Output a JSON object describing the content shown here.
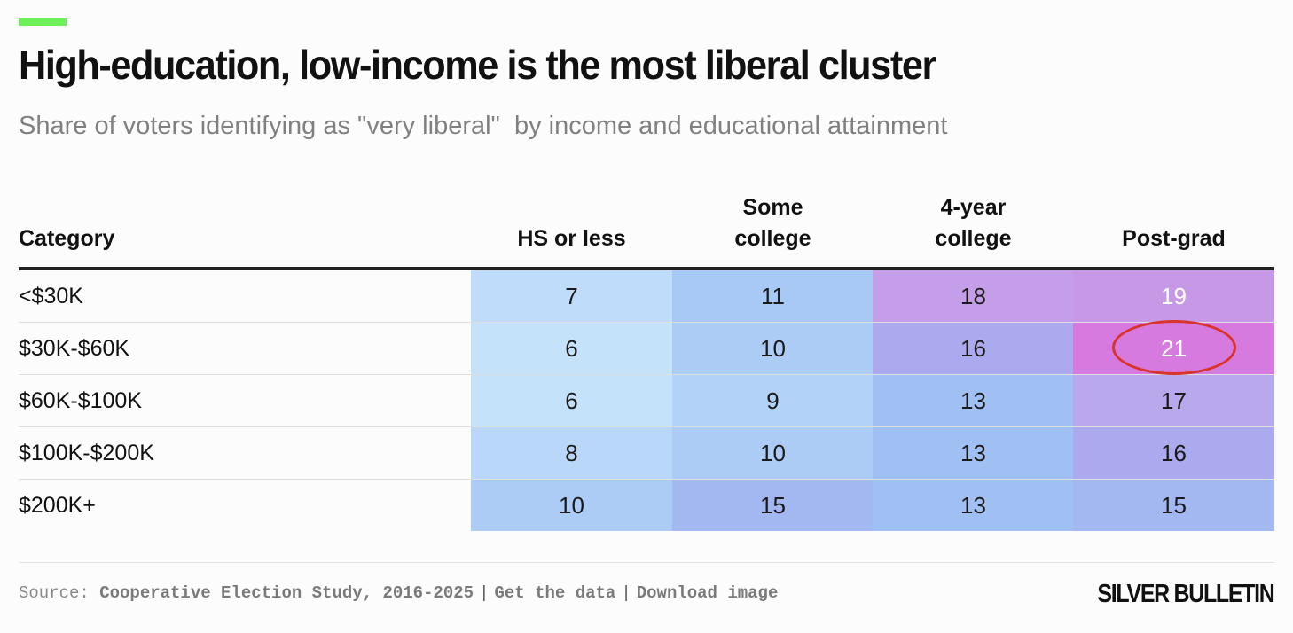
{
  "header": {
    "title": "High-education, low-income is the most liberal cluster",
    "subtitle": "Share of voters identifying as \"very liberal\"  by income and educational attainment"
  },
  "colors": {
    "accent": "#6ef05a",
    "highlight_ring": "#d9342b",
    "scale_low": "#c5e2fb",
    "scale_high": "#d67ae0"
  },
  "chart_data": {
    "type": "heatmap",
    "row_header": "Category",
    "columns": [
      "HS or less",
      "Some\ncollege",
      "4-year\ncollege",
      "Post-grad"
    ],
    "rows": [
      "<$30K",
      "$30K-$60K",
      "$60K-$100K",
      "$100K-$200K",
      "$200K+"
    ],
    "values": [
      [
        7,
        11,
        18,
        19
      ],
      [
        6,
        10,
        16,
        21
      ],
      [
        6,
        9,
        13,
        17
      ],
      [
        8,
        10,
        13,
        16
      ],
      [
        10,
        15,
        13,
        15
      ]
    ],
    "highlight": {
      "row": 1,
      "col": 3
    }
  },
  "footer": {
    "source_prefix": "Source: ",
    "source": "Cooperative Election Study, 2016-2025",
    "get_data": "Get the data",
    "download": "Download image",
    "separator": "|",
    "brand": "SILVER BULLETIN"
  }
}
